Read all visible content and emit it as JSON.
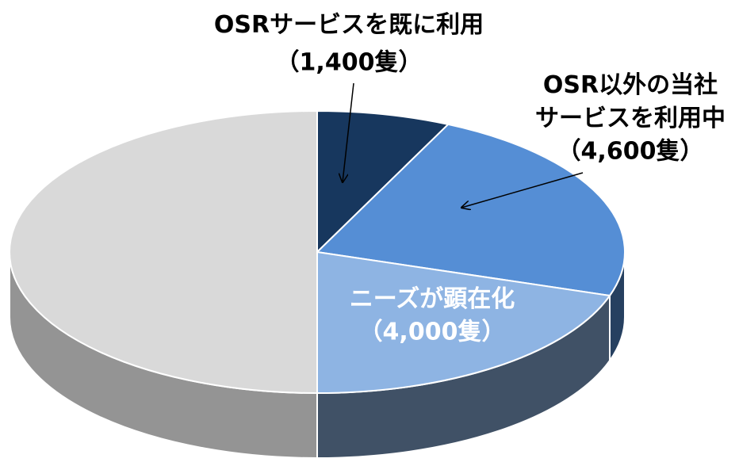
{
  "chart_data": {
    "type": "pie",
    "categories": [
      "OSRサービスを既に利用",
      "OSR以外の当社\nサービスを利用中",
      "ニーズが顕在化",
      null
    ],
    "values": [
      1400,
      4600,
      4000,
      10000
    ],
    "value_labels": [
      "（1,400隻）",
      "（4,600隻）",
      "（4,000隻）",
      null
    ],
    "colors": [
      "#17375e",
      "#558ed5",
      "#8eb4e3",
      "#d9d9d9"
    ]
  }
}
